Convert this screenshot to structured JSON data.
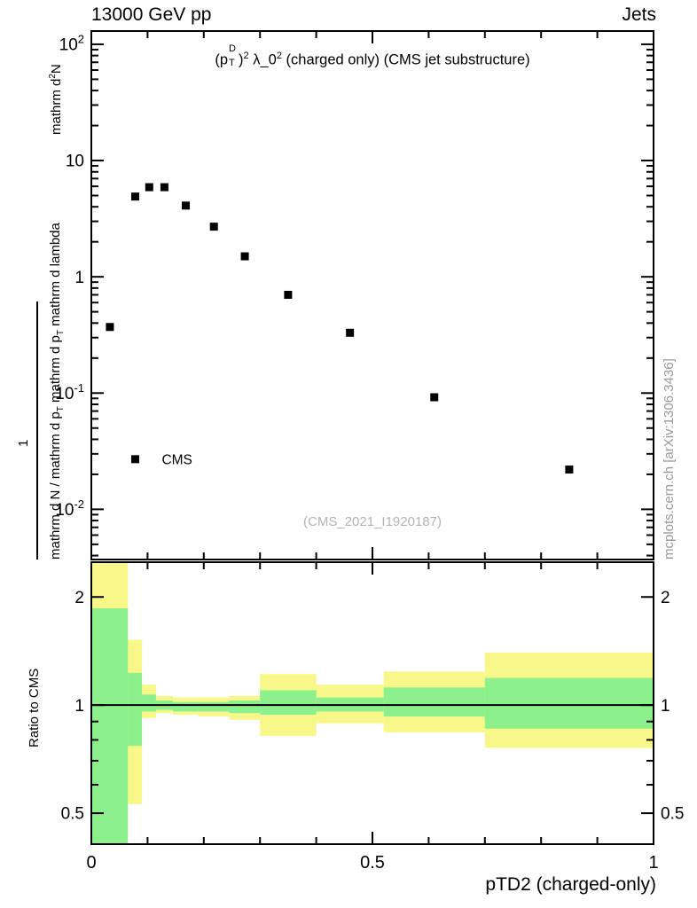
{
  "header": {
    "left": "13000 GeV pp",
    "right": "Jets"
  },
  "top_panel": {
    "title_parts": {
      "p": "(p",
      "sup_D": "D",
      "sub_T": "T",
      "close": ")",
      "sup2a": "2",
      "lambda": " λ_0",
      "sup2b": "2",
      "rest": " (charged only) (CMS jet substructure)"
    },
    "ylabel": {
      "one": "1",
      "num1": "mathrm d",
      "num_sup": "2",
      "num2": "N",
      "den1": "mathrm d N / mathrm d p",
      "den_sub1": "T",
      "den2": " mathrm d p",
      "den_sub2": "T",
      "den3": " mathrm d lambda"
    },
    "watermark": "(CMS_2021_I1920187)",
    "legend_label": "CMS"
  },
  "ratio_panel": {
    "ylabel": "Ratio to CMS"
  },
  "xaxis_title": "pTD2 (charged-only)",
  "side_note": "mcplots.cern.ch [arXiv:1306.3436]",
  "colors": {
    "band_outer": "#f8f88a",
    "band_inner": "#8cf08c",
    "marker": "#000000",
    "frame": "#000000",
    "watermark": "#b3b3b3",
    "side_note": "#999999"
  },
  "chart_data": [
    {
      "type": "scatter",
      "panel": "main",
      "title": "(p_T^D)^2 λ_0^2 (charged only) (CMS jet substructure)",
      "xlabel": "pTD2 (charged-only)",
      "ylabel": "1/(mathrm d N / mathrm d p_T) · mathrm d²N/(mathrm d p_T mathrm d lambda)",
      "xlim": [
        0,
        1
      ],
      "ylog": true,
      "ylim": [
        0.0037,
        130
      ],
      "yticks": [
        {
          "v": 0.01,
          "label": "10^-2"
        },
        {
          "v": 0.1,
          "label": "10^-1"
        },
        {
          "v": 1,
          "label": "1"
        },
        {
          "v": 10,
          "label": "10"
        },
        {
          "v": 100,
          "label": "10^2"
        }
      ],
      "xticks": [
        {
          "v": 0,
          "label": "0"
        },
        {
          "v": 0.5,
          "label": "0.5"
        },
        {
          "v": 1,
          "label": "1"
        }
      ],
      "series": [
        {
          "name": "CMS",
          "marker": "filled-square",
          "color": "#000000",
          "x": [
            0.033,
            0.078,
            0.103,
            0.13,
            0.168,
            0.218,
            0.273,
            0.35,
            0.46,
            0.61,
            0.85
          ],
          "y": [
            0.37,
            4.9,
            5.9,
            5.9,
            4.1,
            2.7,
            1.5,
            0.7,
            0.33,
            0.092,
            0.022
          ]
        }
      ],
      "legend": {
        "label": "CMS",
        "x": 0.078,
        "y": 0.027
      }
    },
    {
      "type": "area",
      "panel": "ratio",
      "title": "Ratio to CMS",
      "xlim": [
        0,
        1
      ],
      "ylog": true,
      "ylim": [
        0.41,
        2.5
      ],
      "yticks": [
        {
          "v": 0.5,
          "label": "0.5"
        },
        {
          "v": 1,
          "label": "1"
        },
        {
          "v": 2,
          "label": "2"
        }
      ],
      "xticks": [
        {
          "v": 0,
          "label": "0"
        },
        {
          "v": 0.5,
          "label": "0.5"
        },
        {
          "v": 1,
          "label": "1"
        }
      ],
      "reference_line": 1,
      "bands": [
        {
          "x0": 0.0,
          "x1": 0.065,
          "outer": [
            0.3,
            2.6
          ],
          "inner": [
            0.3,
            1.86
          ]
        },
        {
          "x0": 0.065,
          "x1": 0.09,
          "outer": [
            0.53,
            1.52
          ],
          "inner": [
            0.77,
            1.23
          ]
        },
        {
          "x0": 0.09,
          "x1": 0.115,
          "outer": [
            0.92,
            1.14
          ],
          "inner": [
            0.96,
            1.07
          ]
        },
        {
          "x0": 0.115,
          "x1": 0.145,
          "outer": [
            0.95,
            1.06
          ],
          "inner": [
            0.97,
            1.03
          ]
        },
        {
          "x0": 0.145,
          "x1": 0.19,
          "outer": [
            0.94,
            1.05
          ],
          "inner": [
            0.96,
            1.02
          ]
        },
        {
          "x0": 0.19,
          "x1": 0.245,
          "outer": [
            0.93,
            1.05
          ],
          "inner": [
            0.96,
            1.02
          ]
        },
        {
          "x0": 0.245,
          "x1": 0.3,
          "outer": [
            0.91,
            1.06
          ],
          "inner": [
            0.95,
            1.03
          ]
        },
        {
          "x0": 0.3,
          "x1": 0.4,
          "outer": [
            0.82,
            1.22
          ],
          "inner": [
            0.94,
            1.1
          ]
        },
        {
          "x0": 0.4,
          "x1": 0.52,
          "outer": [
            0.89,
            1.14
          ],
          "inner": [
            0.96,
            1.05
          ]
        },
        {
          "x0": 0.52,
          "x1": 0.7,
          "outer": [
            0.84,
            1.24
          ],
          "inner": [
            0.93,
            1.12
          ]
        },
        {
          "x0": 0.7,
          "x1": 1.0,
          "outer": [
            0.76,
            1.4
          ],
          "inner": [
            0.86,
            1.19
          ]
        }
      ]
    }
  ]
}
